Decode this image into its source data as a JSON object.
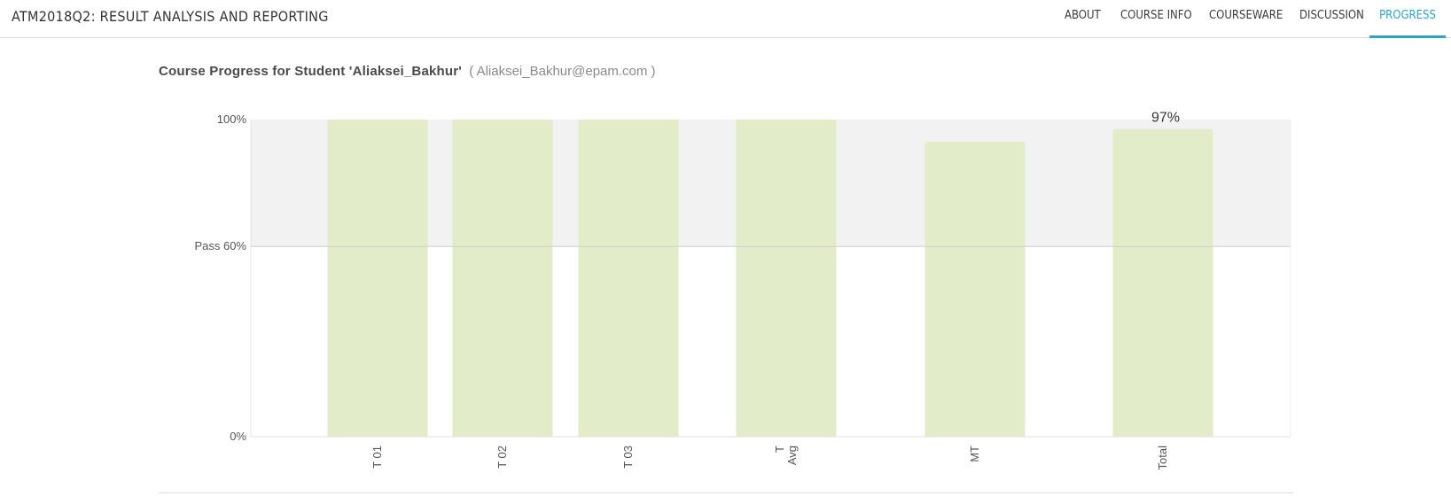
{
  "header": {
    "course_title": "ATM2018Q2: RESULT ANALYSIS AND REPORTING",
    "nav": [
      {
        "label": "ABOUT",
        "active": false
      },
      {
        "label": "COURSE INFO",
        "active": false
      },
      {
        "label": "COURSEWARE",
        "active": false
      },
      {
        "label": "DISCUSSION",
        "active": false
      },
      {
        "label": "PROGRESS",
        "active": true
      }
    ],
    "accent_color": "#2ea3c8"
  },
  "progress": {
    "heading": "Course Progress for Student 'Aliaksei_Bakhur'",
    "email": "( Aliaksei_Bakhur@epam.com )"
  },
  "chart_data": {
    "type": "bar",
    "categories": [
      "T 01",
      "T 02",
      "T 03",
      "T Avg",
      "MT",
      "Total"
    ],
    "category_labels": [
      [
        "T 01"
      ],
      [
        "T 02"
      ],
      [
        "T 03"
      ],
      [
        "T",
        "Avg"
      ],
      [
        "MT"
      ],
      [
        "Total"
      ]
    ],
    "values": [
      100,
      100,
      100,
      100,
      93,
      97
    ],
    "data_labels": {
      "Total": "97%"
    },
    "y_ticks": [
      {
        "value": 100,
        "label": "100%"
      },
      {
        "value": 60,
        "label": "Pass 60%"
      },
      {
        "value": 0,
        "label": "0%"
      }
    ],
    "pass_threshold": 60,
    "ylim": [
      0,
      100
    ],
    "bar_color": "#e2ecc8",
    "pass_band_color": "#f2f2f2",
    "title": "",
    "xlabel": "",
    "ylabel": "",
    "grid": false,
    "legend": "none"
  }
}
